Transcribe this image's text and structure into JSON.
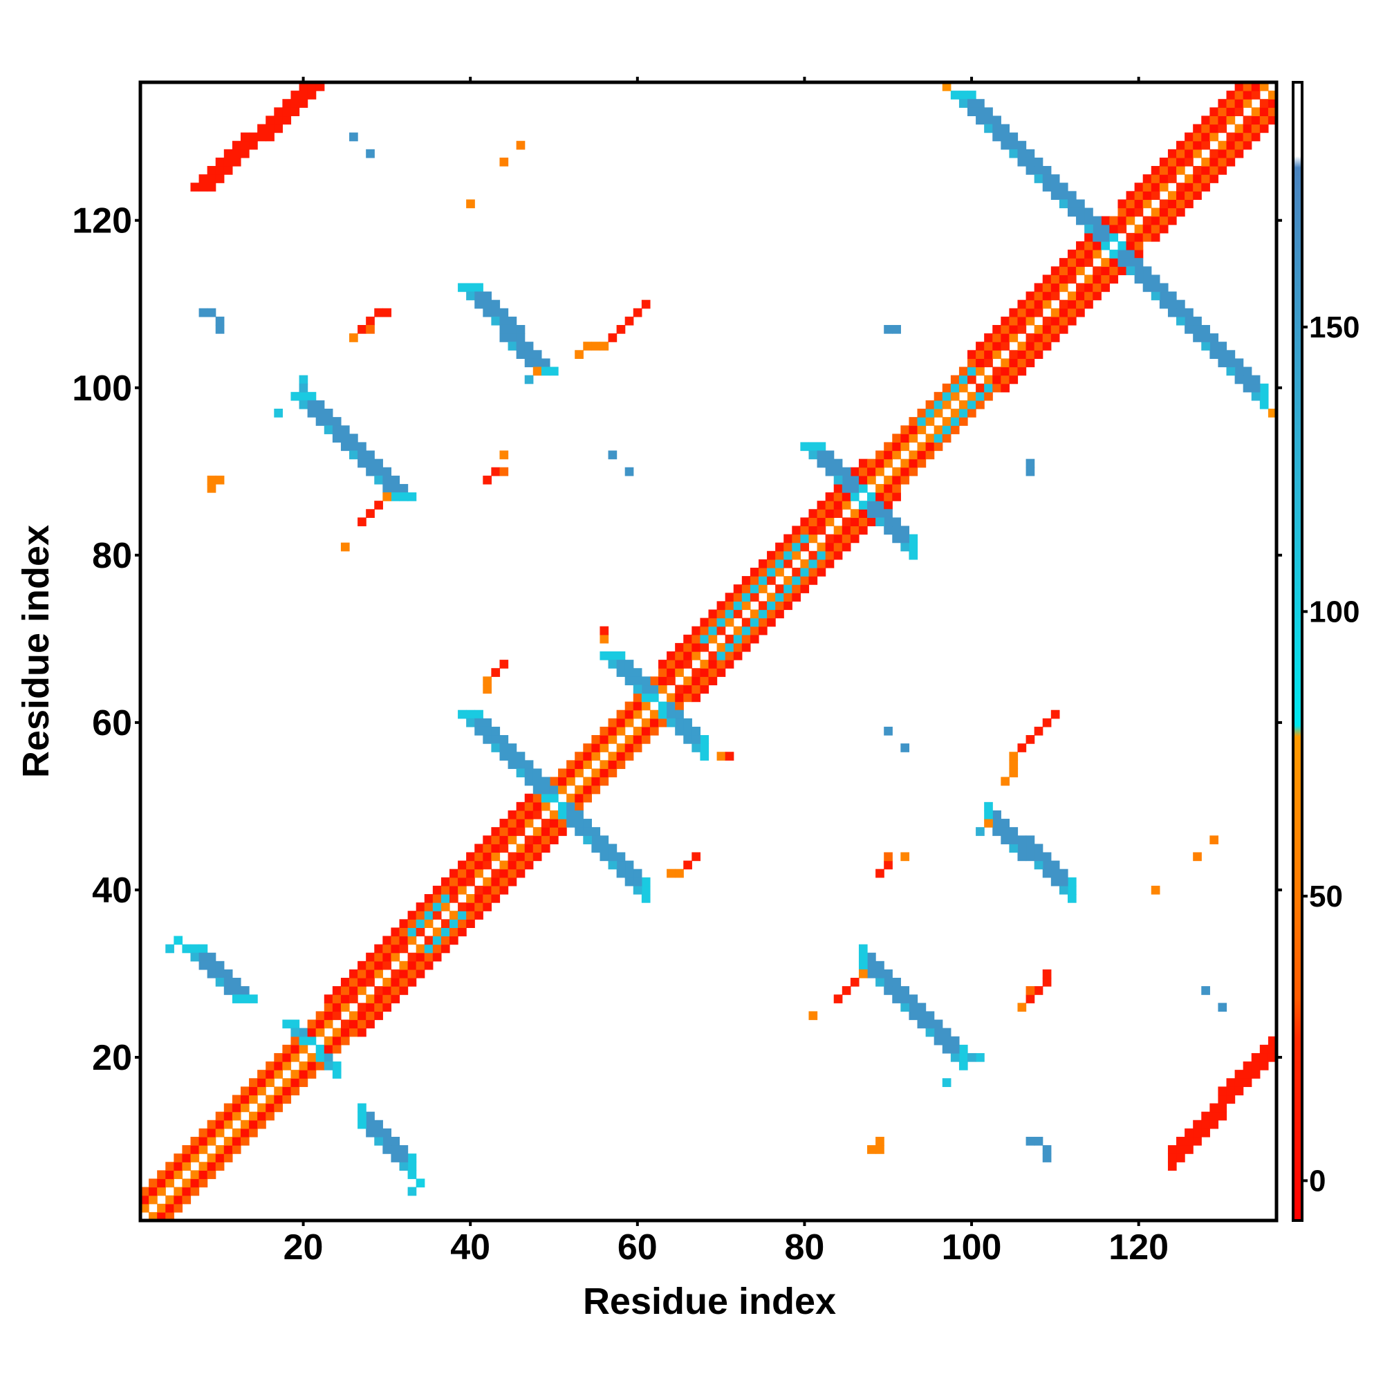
{
  "chart_data": {
    "type": "heatmap",
    "title": "",
    "xlabel": "Residue index",
    "ylabel": "Residue index",
    "xlim": [
      0.5,
      136.5
    ],
    "ylim": [
      0.5,
      136.5
    ],
    "n_residues": 136,
    "xticks": [
      20,
      40,
      60,
      80,
      100,
      120
    ],
    "yticks": [
      20,
      40,
      60,
      80,
      100,
      120
    ],
    "symmetric": true,
    "colorbar": {
      "range": [
        -7,
        193
      ],
      "ticks": [
        0,
        50,
        100,
        150
      ],
      "stops": [
        {
          "value": -7,
          "color": "#ff0000"
        },
        {
          "value": 25,
          "color": "#ff2a00"
        },
        {
          "value": 32,
          "color": "#ff5a00"
        },
        {
          "value": 50,
          "color": "#ff7a00"
        },
        {
          "value": 78,
          "color": "#ff9a00"
        },
        {
          "value": 80,
          "color": "#00e8f0"
        },
        {
          "value": 120,
          "color": "#2ab8d8"
        },
        {
          "value": 178,
          "color": "#4a84c0"
        },
        {
          "value": 180,
          "color": "#ffffff"
        },
        {
          "value": 193,
          "color": "#ffffff"
        }
      ]
    },
    "diagonal_band": {
      "offsets": [
        {
          "d": 1,
          "value": 60
        },
        {
          "d": 2,
          "value": 5
        },
        {
          "d": 3,
          "value": 35
        }
      ],
      "helix_ranges": [
        [
          23,
          48
        ],
        [
          63,
          87
        ],
        [
          100,
          116
        ],
        [
          118,
          136
        ]
      ],
      "helix_offset4_value": 10,
      "cyan_ranges": [
        [
          33,
          37
        ],
        [
          68,
          80
        ],
        [
          94,
          100
        ]
      ],
      "cyan_value": 110
    },
    "strands": [
      {
        "from": [
          6,
          33
        ],
        "to": [
          12,
          27
        ],
        "width": 3,
        "value": 160
      },
      {
        "from": [
          18,
          24
        ],
        "to": [
          20,
          22
        ],
        "width": 2,
        "value": 140
      },
      {
        "from": [
          19,
          99
        ],
        "to": [
          31,
          87
        ],
        "width": 3,
        "value": 160
      },
      {
        "from": [
          39,
          112
        ],
        "to": [
          48,
          102
        ],
        "width": 3,
        "value": 160
      },
      {
        "from": [
          39,
          61
        ],
        "to": [
          49,
          51
        ],
        "width": 3,
        "value": 155
      },
      {
        "from": [
          56,
          68
        ],
        "to": [
          61,
          63
        ],
        "width": 3,
        "value": 150
      },
      {
        "from": [
          80,
          93
        ],
        "to": [
          86,
          87
        ],
        "width": 3,
        "value": 160
      },
      {
        "from": [
          98,
          135
        ],
        "to": [
          116,
          117
        ],
        "width": 3,
        "value": 160
      },
      {
        "from": [
          7,
          124
        ],
        "to": [
          20,
          136
        ],
        "width": 3,
        "value": 12
      }
    ],
    "contacts": [
      [
        26,
        130,
        160
      ],
      [
        28,
        128,
        160
      ],
      [
        44,
        127,
        55
      ],
      [
        46,
        129,
        55
      ],
      [
        40,
        122,
        60
      ],
      [
        8,
        109,
        160
      ],
      [
        9,
        109,
        160
      ],
      [
        10,
        108,
        160
      ],
      [
        10,
        107,
        160
      ],
      [
        26,
        106,
        60
      ],
      [
        27,
        107,
        15
      ],
      [
        28,
        108,
        15
      ],
      [
        29,
        109,
        15
      ],
      [
        30,
        109,
        15
      ],
      [
        28,
        107,
        40
      ],
      [
        53,
        104,
        60
      ],
      [
        54,
        105,
        60
      ],
      [
        55,
        105,
        60
      ],
      [
        56,
        105,
        60
      ],
      [
        57,
        106,
        15
      ],
      [
        58,
        107,
        15
      ],
      [
        59,
        108,
        15
      ],
      [
        60,
        109,
        15
      ],
      [
        61,
        110,
        15
      ],
      [
        47,
        101,
        130
      ],
      [
        48,
        102,
        60
      ],
      [
        9,
        88,
        60
      ],
      [
        9,
        89,
        60
      ],
      [
        10,
        89,
        60
      ],
      [
        25,
        81,
        60
      ],
      [
        27,
        84,
        15
      ],
      [
        28,
        85,
        15
      ],
      [
        29,
        86,
        15
      ],
      [
        30,
        87,
        60
      ],
      [
        42,
        89,
        15
      ],
      [
        43,
        90,
        15
      ],
      [
        44,
        90,
        40
      ],
      [
        44,
        92,
        60
      ],
      [
        57,
        92,
        160
      ],
      [
        59,
        90,
        160
      ],
      [
        90,
        107,
        160
      ],
      [
        91,
        107,
        160
      ],
      [
        42,
        64,
        60
      ],
      [
        42,
        65,
        60
      ],
      [
        43,
        66,
        15
      ],
      [
        44,
        67,
        15
      ],
      [
        56,
        70,
        60
      ],
      [
        56,
        71,
        15
      ],
      [
        5,
        34,
        100
      ],
      [
        20,
        101,
        110
      ],
      [
        17,
        97,
        110
      ],
      [
        33,
        4,
        110
      ],
      [
        97,
        136,
        70
      ],
      [
        20,
        100,
        130
      ]
    ]
  }
}
